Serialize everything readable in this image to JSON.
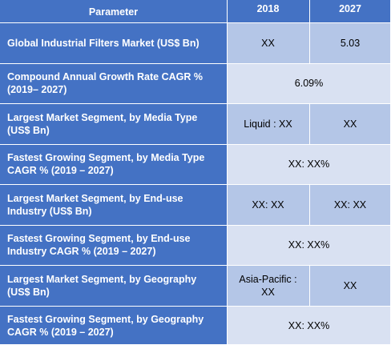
{
  "header": {
    "parameter": "Parameter",
    "year_2018": "2018",
    "year_2027": "2027"
  },
  "rows": [
    {
      "label": "Global Industrial Filters Market (US$ Bn)",
      "v2018": "XX",
      "v2027": "5.03"
    },
    {
      "label": "Compound Annual Growth Rate CAGR % (2019– 2027)",
      "merged": "6.09%"
    },
    {
      "label": "Largest Market Segment, by Media Type (US$ Bn)",
      "v2018": "Liquid : XX",
      "v2027": "XX"
    },
    {
      "label": "Fastest Growing Segment, by Media Type CAGR % (2019 – 2027)",
      "merged": "XX: XX%"
    },
    {
      "label": "Largest Market Segment, by End-use Industry (US$ Bn)",
      "v2018": "XX: XX",
      "v2027": "XX: XX"
    },
    {
      "label": "Fastest Growing Segment, by End-use Industry CAGR % (2019 – 2027)",
      "merged": "XX: XX%"
    },
    {
      "label": "Largest Market Segment, by Geography (US$ Bn)",
      "v2018": "Asia-Pacific : XX",
      "v2027": "XX"
    },
    {
      "label": "Fastest Growing Segment, by Geography CAGR % (2019 – 2027)",
      "merged": "XX: XX%"
    }
  ],
  "colors": {
    "header_bg": "#4472c4",
    "value_dark": "#b4c6e7",
    "value_light": "#d9e1f2",
    "grid_line": "#ffffff"
  }
}
